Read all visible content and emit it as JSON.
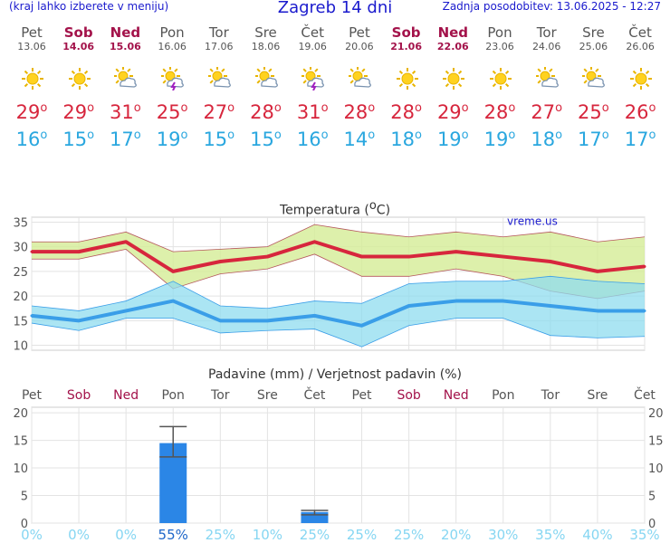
{
  "header": {
    "left_note": "(kraj lahko izberete v meniju)",
    "title": "Zagreb 14 dni",
    "updated": "Zadnja posodobitev: 13.06.2025 - 12:27"
  },
  "days": [
    {
      "name": "Pet",
      "date": "13.06",
      "weekend": false,
      "icon": "sun-icon",
      "tmax": "29",
      "tmin": "16"
    },
    {
      "name": "Sob",
      "date": "14.06",
      "weekend": true,
      "icon": "sun-icon",
      "tmax": "29",
      "tmin": "15"
    },
    {
      "name": "Ned",
      "date": "15.06",
      "weekend": true,
      "icon": "sun-cloud-icon",
      "tmax": "31",
      "tmin": "17"
    },
    {
      "name": "Pon",
      "date": "16.06",
      "weekend": false,
      "icon": "thunderstorm-icon",
      "tmax": "25",
      "tmin": "19"
    },
    {
      "name": "Tor",
      "date": "17.06",
      "weekend": false,
      "icon": "sun-cloud-icon",
      "tmax": "27",
      "tmin": "15"
    },
    {
      "name": "Sre",
      "date": "18.06",
      "weekend": false,
      "icon": "sun-cloud-icon",
      "tmax": "28",
      "tmin": "15"
    },
    {
      "name": "Čet",
      "date": "19.06",
      "weekend": false,
      "icon": "thunderstorm-icon",
      "tmax": "31",
      "tmin": "16"
    },
    {
      "name": "Pet",
      "date": "20.06",
      "weekend": false,
      "icon": "sun-cloud-icon",
      "tmax": "28",
      "tmin": "14"
    },
    {
      "name": "Sob",
      "date": "21.06",
      "weekend": true,
      "icon": "sun-icon",
      "tmax": "28",
      "tmin": "18"
    },
    {
      "name": "Ned",
      "date": "22.06",
      "weekend": true,
      "icon": "sun-icon",
      "tmax": "29",
      "tmin": "19"
    },
    {
      "name": "Pon",
      "date": "23.06",
      "weekend": false,
      "icon": "sun-icon",
      "tmax": "28",
      "tmin": "19"
    },
    {
      "name": "Tor",
      "date": "24.06",
      "weekend": false,
      "icon": "sun-cloud-icon",
      "tmax": "27",
      "tmin": "18"
    },
    {
      "name": "Sre",
      "date": "25.06",
      "weekend": false,
      "icon": "sun-cloud-icon",
      "tmax": "25",
      "tmin": "17"
    },
    {
      "name": "Čet",
      "date": "26.06",
      "weekend": false,
      "icon": "sun-icon",
      "tmax": "26",
      "tmin": "17"
    }
  ],
  "colors": {
    "max_line": "#d7263d",
    "min_line": "#3a9ee8",
    "max_band": "#d4ec96",
    "min_band": "#8fdcef",
    "weekend": "#a3124a",
    "bar": "#2b86e6",
    "prob": "#86d6f2",
    "prob_strong": "#1f67c9"
  },
  "chart_data": [
    {
      "type": "line",
      "title": "Temperatura (°C)",
      "watermark": "vreme.us",
      "ylim": [
        9,
        36
      ],
      "yticks": [
        10,
        15,
        20,
        25,
        30,
        35
      ],
      "categories": [
        "Pet",
        "Sob",
        "Ned",
        "Pon",
        "Tor",
        "Sre",
        "Čet",
        "Pet",
        "Sob",
        "Ned",
        "Pon",
        "Tor",
        "Sre",
        "Čet"
      ],
      "series": [
        {
          "values": [
            29,
            29,
            31,
            25,
            27,
            28,
            31,
            28,
            28,
            29,
            28,
            27,
            25,
            26
          ]
        },
        {
          "values": [
            16,
            15,
            17,
            19,
            15,
            15,
            16,
            14,
            18,
            19,
            19,
            18,
            17,
            17
          ]
        }
      ],
      "bands": [
        {
          "upper": [
            31,
            31,
            33,
            29,
            29.5,
            30,
            34.5,
            33,
            32,
            33,
            32,
            33,
            31,
            32
          ],
          "lower": [
            27.5,
            27.5,
            29.5,
            21.5,
            24.5,
            25.5,
            28.5,
            24,
            24,
            25.5,
            24,
            21,
            19.5,
            21
          ]
        },
        {
          "upper": [
            18,
            17,
            19,
            23,
            18,
            17.5,
            19,
            18.5,
            22.5,
            23,
            23,
            24,
            23,
            22.5
          ],
          "lower": [
            14.5,
            13,
            15.5,
            15.5,
            12.5,
            13,
            13.3,
            9.7,
            14,
            15.5,
            15.5,
            12,
            11.5,
            11.8
          ]
        }
      ],
      "grid": true
    },
    {
      "type": "bar",
      "title": "Padavine (mm) / Verjetnost padavin (%)",
      "ylim": [
        0,
        21
      ],
      "yticks": [
        0,
        5,
        10,
        15,
        20
      ],
      "categories": [
        "Pet",
        "Sob",
        "Ned",
        "Pon",
        "Tor",
        "Sre",
        "Čet",
        "Pet",
        "Sob",
        "Ned",
        "Pon",
        "Tor",
        "Sre",
        "Čet"
      ],
      "values": [
        0,
        0,
        0,
        14.5,
        0,
        0,
        2,
        0,
        0,
        0,
        0,
        0,
        0,
        0
      ],
      "error_bars": [
        null,
        null,
        null,
        [
          12,
          17.5
        ],
        null,
        null,
        [
          1.5,
          2.3
        ],
        null,
        null,
        null,
        null,
        null,
        null,
        null
      ],
      "probability": [
        "0%",
        "0%",
        "0%",
        "55%",
        "25%",
        "10%",
        "25%",
        "25%",
        "25%",
        "20%",
        "30%",
        "35%",
        "40%",
        "35%"
      ],
      "grid": true
    }
  ]
}
